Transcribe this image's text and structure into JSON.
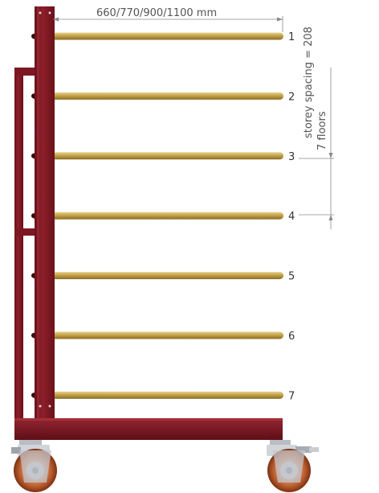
{
  "dimensions": {
    "width_label": "660/770/900/1100 mm",
    "spacing_label": "storey spacing = 208",
    "floors_label": "7 floors"
  },
  "levels": [
    "1",
    "2",
    "3",
    "4",
    "5",
    "6",
    "7"
  ],
  "colors": {
    "frame": "#7a1620",
    "frame_highlight": "#9a2a33",
    "rod": "#b9983f",
    "rod_highlight": "#e2c978",
    "wheel_hub": "#c9ccd2",
    "wheel_tyre": "#a0441e"
  }
}
